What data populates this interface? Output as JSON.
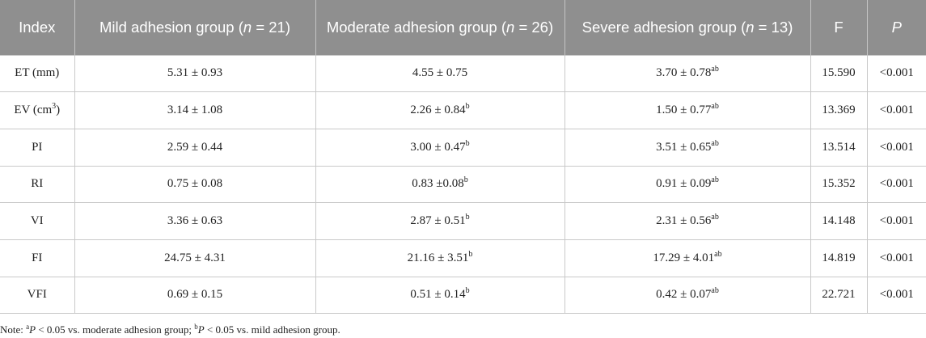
{
  "table": {
    "headers": {
      "index": "Index",
      "mild_prefix": "Mild adhesion group (",
      "mild_n": "n",
      "mild_suffix": " = 21)",
      "moderate_prefix": "Moderate adhesion group (",
      "moderate_n": "n",
      "moderate_suffix": " = 26)",
      "severe_prefix": "Severe adhesion group (",
      "severe_n": "n",
      "severe_suffix": " = 13)",
      "f": "F",
      "p": "P"
    },
    "rows": [
      {
        "index": "ET (mm)",
        "mild": "5.31 ± 0.93",
        "mild_sup": "",
        "moderate": "4.55 ± 0.75",
        "moderate_sup": "",
        "severe": "3.70 ± 0.78",
        "severe_sup": "ab",
        "f": "15.590",
        "p": "<0.001"
      },
      {
        "index": "EV (cm",
        "index_sup": "3",
        "index_suffix": ")",
        "mild": "3.14 ± 1.08",
        "mild_sup": "",
        "moderate": "2.26 ± 0.84",
        "moderate_sup": "b",
        "severe": "1.50 ± 0.77",
        "severe_sup": "ab",
        "f": "13.369",
        "p": "<0.001"
      },
      {
        "index": "PI",
        "mild": "2.59 ± 0.44",
        "mild_sup": "",
        "moderate": "3.00 ± 0.47",
        "moderate_sup": "b",
        "severe": "3.51 ± 0.65",
        "severe_sup": "ab",
        "f": "13.514",
        "p": "<0.001"
      },
      {
        "index": "RI",
        "mild": "0.75 ± 0.08",
        "mild_sup": "",
        "moderate": "0.83 ±0.08",
        "moderate_sup": "b",
        "severe": "0.91 ± 0.09",
        "severe_sup": "ab",
        "f": "15.352",
        "p": "<0.001"
      },
      {
        "index": "VI",
        "mild": "3.36 ± 0.63",
        "mild_sup": "",
        "moderate": "2.87 ± 0.51",
        "moderate_sup": "b",
        "severe": "2.31 ± 0.56",
        "severe_sup": "ab",
        "f": "14.148",
        "p": "<0.001"
      },
      {
        "index": "FI",
        "mild": "24.75 ± 4.31",
        "mild_sup": "",
        "moderate": "21.16 ± 3.51",
        "moderate_sup": "b",
        "severe": "17.29 ± 4.01",
        "severe_sup": "ab",
        "f": "14.819",
        "p": "<0.001"
      },
      {
        "index": "VFI",
        "mild": "0.69 ± 0.15",
        "mild_sup": "",
        "moderate": "0.51 ± 0.14",
        "moderate_sup": "b",
        "severe": "0.42 ± 0.07",
        "severe_sup": "ab",
        "f": "22.721",
        "p": "<0.001"
      }
    ]
  },
  "note": {
    "prefix": "Note: ",
    "sup_a": "a",
    "p1": "P",
    "text1": " < 0.05 vs. moderate adhesion group; ",
    "sup_b": "b",
    "p2": "P",
    "text2": " < 0.05 vs. mild adhesion group."
  },
  "colors": {
    "header_background": "#8f8f8f",
    "header_text": "#ffffff",
    "body_text": "#222222",
    "grid_line": "#c9c9c9"
  }
}
